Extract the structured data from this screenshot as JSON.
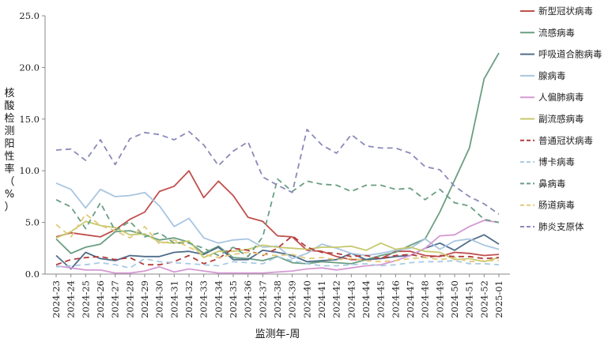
{
  "chart_data": {
    "type": "line",
    "xlabel": "监测年-周",
    "ylabel": "核酸检测阳性率（%）",
    "ylim": [
      0,
      25
    ],
    "yticks": [
      "0.0",
      "5.0",
      "10.0",
      "15.0",
      "20.0",
      "25.0"
    ],
    "grid": false,
    "legend": "right",
    "categories": [
      "2024-23",
      "2024-24",
      "2024-25",
      "2024-26",
      "2024-27",
      "2024-28",
      "2024-29",
      "2024-30",
      "2024-31",
      "2024-32",
      "2024-33",
      "2024-34",
      "2024-35",
      "2024-36",
      "2024-37",
      "2024-38",
      "2024-39",
      "2024-40",
      "2024-41",
      "2024-42",
      "2024-43",
      "2024-44",
      "2024-45",
      "2024-46",
      "2024-47",
      "2024-48",
      "2024-49",
      "2024-50",
      "2024-51",
      "2024-52",
      "2025-01"
    ],
    "series": [
      {
        "name": "新型冠状病毒",
        "color": "#c0504d",
        "dash": false,
        "values": [
          3.6,
          4.0,
          3.8,
          3.6,
          4.3,
          5.3,
          6.0,
          8.0,
          8.5,
          10.0,
          7.4,
          9.0,
          7.6,
          5.5,
          5.1,
          3.7,
          3.6,
          2.3,
          2.2,
          1.7,
          1.4,
          1.4,
          1.5,
          2.2,
          2.2,
          1.8,
          1.7,
          2.1,
          2.0,
          1.8,
          1.9
        ]
      },
      {
        "name": "流感病毒",
        "color": "#6a9e83",
        "dash": false,
        "values": [
          3.4,
          2.0,
          2.6,
          2.9,
          4.1,
          4.2,
          3.8,
          3.3,
          3.5,
          3.1,
          2.0,
          2.7,
          1.6,
          1.5,
          1.3,
          1.7,
          1.1,
          1.0,
          1.2,
          1.1,
          1.0,
          1.4,
          1.8,
          2.1,
          2.8,
          3.4,
          6.0,
          9.1,
          12.2,
          18.9,
          21.4
        ]
      },
      {
        "name": "呼吸道合胞病毒",
        "color": "#4f6d8a",
        "dash": false,
        "values": [
          1.8,
          0.5,
          2.1,
          1.5,
          1.3,
          1.8,
          1.7,
          1.7,
          2.1,
          2.2,
          1.9,
          2.6,
          1.4,
          1.4,
          2.3,
          2.1,
          1.8,
          1.2,
          1.3,
          1.4,
          2.0,
          1.4,
          1.5,
          1.7,
          1.8,
          2.5,
          3.0,
          2.3,
          3.2,
          3.8,
          2.9
        ]
      },
      {
        "name": "腺病毒",
        "color": "#a9c5e0",
        "dash": false,
        "values": [
          8.8,
          8.2,
          6.4,
          8.2,
          7.5,
          7.6,
          7.9,
          6.6,
          4.6,
          5.4,
          3.5,
          3.0,
          3.3,
          3.4,
          2.6,
          2.7,
          1.5,
          2.0,
          2.9,
          2.5,
          2.0,
          1.8,
          2.0,
          2.3,
          2.5,
          3.4,
          2.4,
          3.2,
          3.4,
          2.8,
          2.4
        ]
      },
      {
        "name": "人偏肺病毒",
        "color": "#d59ad3",
        "dash": false,
        "values": [
          0.8,
          0.6,
          0.4,
          0.4,
          0.1,
          0.1,
          0.3,
          0.7,
          0.2,
          0.5,
          0.3,
          0.1,
          0.1,
          0.1,
          0.1,
          0.2,
          0.3,
          0.5,
          0.6,
          0.4,
          0.6,
          0.8,
          0.9,
          1.3,
          1.8,
          2.5,
          3.7,
          3.8,
          4.6,
          5.2,
          5.0
        ]
      },
      {
        "name": "副流感病毒",
        "color": "#c6c96d",
        "dash": false,
        "values": [
          3.5,
          4.1,
          5.1,
          4.7,
          4.5,
          3.8,
          3.9,
          3.1,
          3.0,
          3.2,
          1.6,
          2.2,
          2.2,
          2.4,
          2.8,
          2.6,
          2.5,
          2.4,
          2.6,
          2.6,
          2.7,
          2.3,
          3.0,
          2.4,
          2.6,
          2.2,
          2.1,
          1.4,
          1.5,
          1.2,
          1.6
        ]
      },
      {
        "name": "普通冠状病毒",
        "color": "#b23c3c",
        "dash": true,
        "values": [
          0.9,
          1.4,
          1.6,
          1.7,
          1.4,
          1.6,
          0.9,
          0.9,
          1.2,
          1.8,
          1.0,
          1.5,
          2.5,
          2.3,
          1.8,
          2.5,
          3.7,
          2.6,
          2.1,
          2.0,
          1.7,
          1.8,
          1.5,
          1.8,
          1.9,
          1.6,
          1.8,
          1.7,
          1.7,
          1.5,
          1.6
        ]
      },
      {
        "name": "博卡病毒",
        "color": "#a9cbe3",
        "dash": true,
        "values": [
          0.7,
          0.8,
          0.9,
          1.1,
          0.9,
          0.6,
          1.5,
          1.2,
          1.1,
          1.0,
          0.9,
          0.8,
          1.2,
          1.1,
          1.0,
          1.7,
          1.3,
          1.0,
          0.8,
          0.8,
          0.9,
          1.0,
          0.8,
          0.9,
          1.1,
          1.2,
          1.2,
          1.3,
          1.0,
          1.0,
          0.9
        ]
      },
      {
        "name": "鼻病毒",
        "color": "#6a9e83",
        "dash": true,
        "values": [
          7.2,
          6.5,
          4.4,
          6.9,
          4.2,
          5.1,
          3.6,
          4.0,
          3.0,
          3.0,
          2.5,
          1.8,
          2.6,
          1.7,
          3.6,
          9.2,
          8.0,
          9.0,
          8.7,
          8.6,
          8.0,
          8.6,
          8.6,
          8.2,
          8.3,
          7.2,
          8.2,
          6.9,
          6.6,
          5.3,
          5.0
        ]
      },
      {
        "name": "肠道病毒",
        "color": "#e3c97b",
        "dash": true,
        "values": [
          4.8,
          3.6,
          5.8,
          4.7,
          4.2,
          3.5,
          4.6,
          2.9,
          3.3,
          2.6,
          1.9,
          1.6,
          1.9,
          2.1,
          1.9,
          1.8,
          1.9,
          1.5,
          1.6,
          1.4,
          1.5,
          1.3,
          1.2,
          1.3,
          1.5,
          1.6,
          1.4,
          1.6,
          1.2,
          1.3,
          1.3
        ]
      },
      {
        "name": "肺炎支原体",
        "color": "#8a8ab8",
        "dash": true,
        "values": [
          12.0,
          12.1,
          11.0,
          13.0,
          10.6,
          13.1,
          13.7,
          13.5,
          13.0,
          13.8,
          12.5,
          10.5,
          11.9,
          12.8,
          9.4,
          8.6,
          7.9,
          14.0,
          12.5,
          11.7,
          13.5,
          12.4,
          12.2,
          12.2,
          11.7,
          10.4,
          10.1,
          8.5,
          7.5,
          6.8,
          5.8
        ]
      }
    ]
  }
}
